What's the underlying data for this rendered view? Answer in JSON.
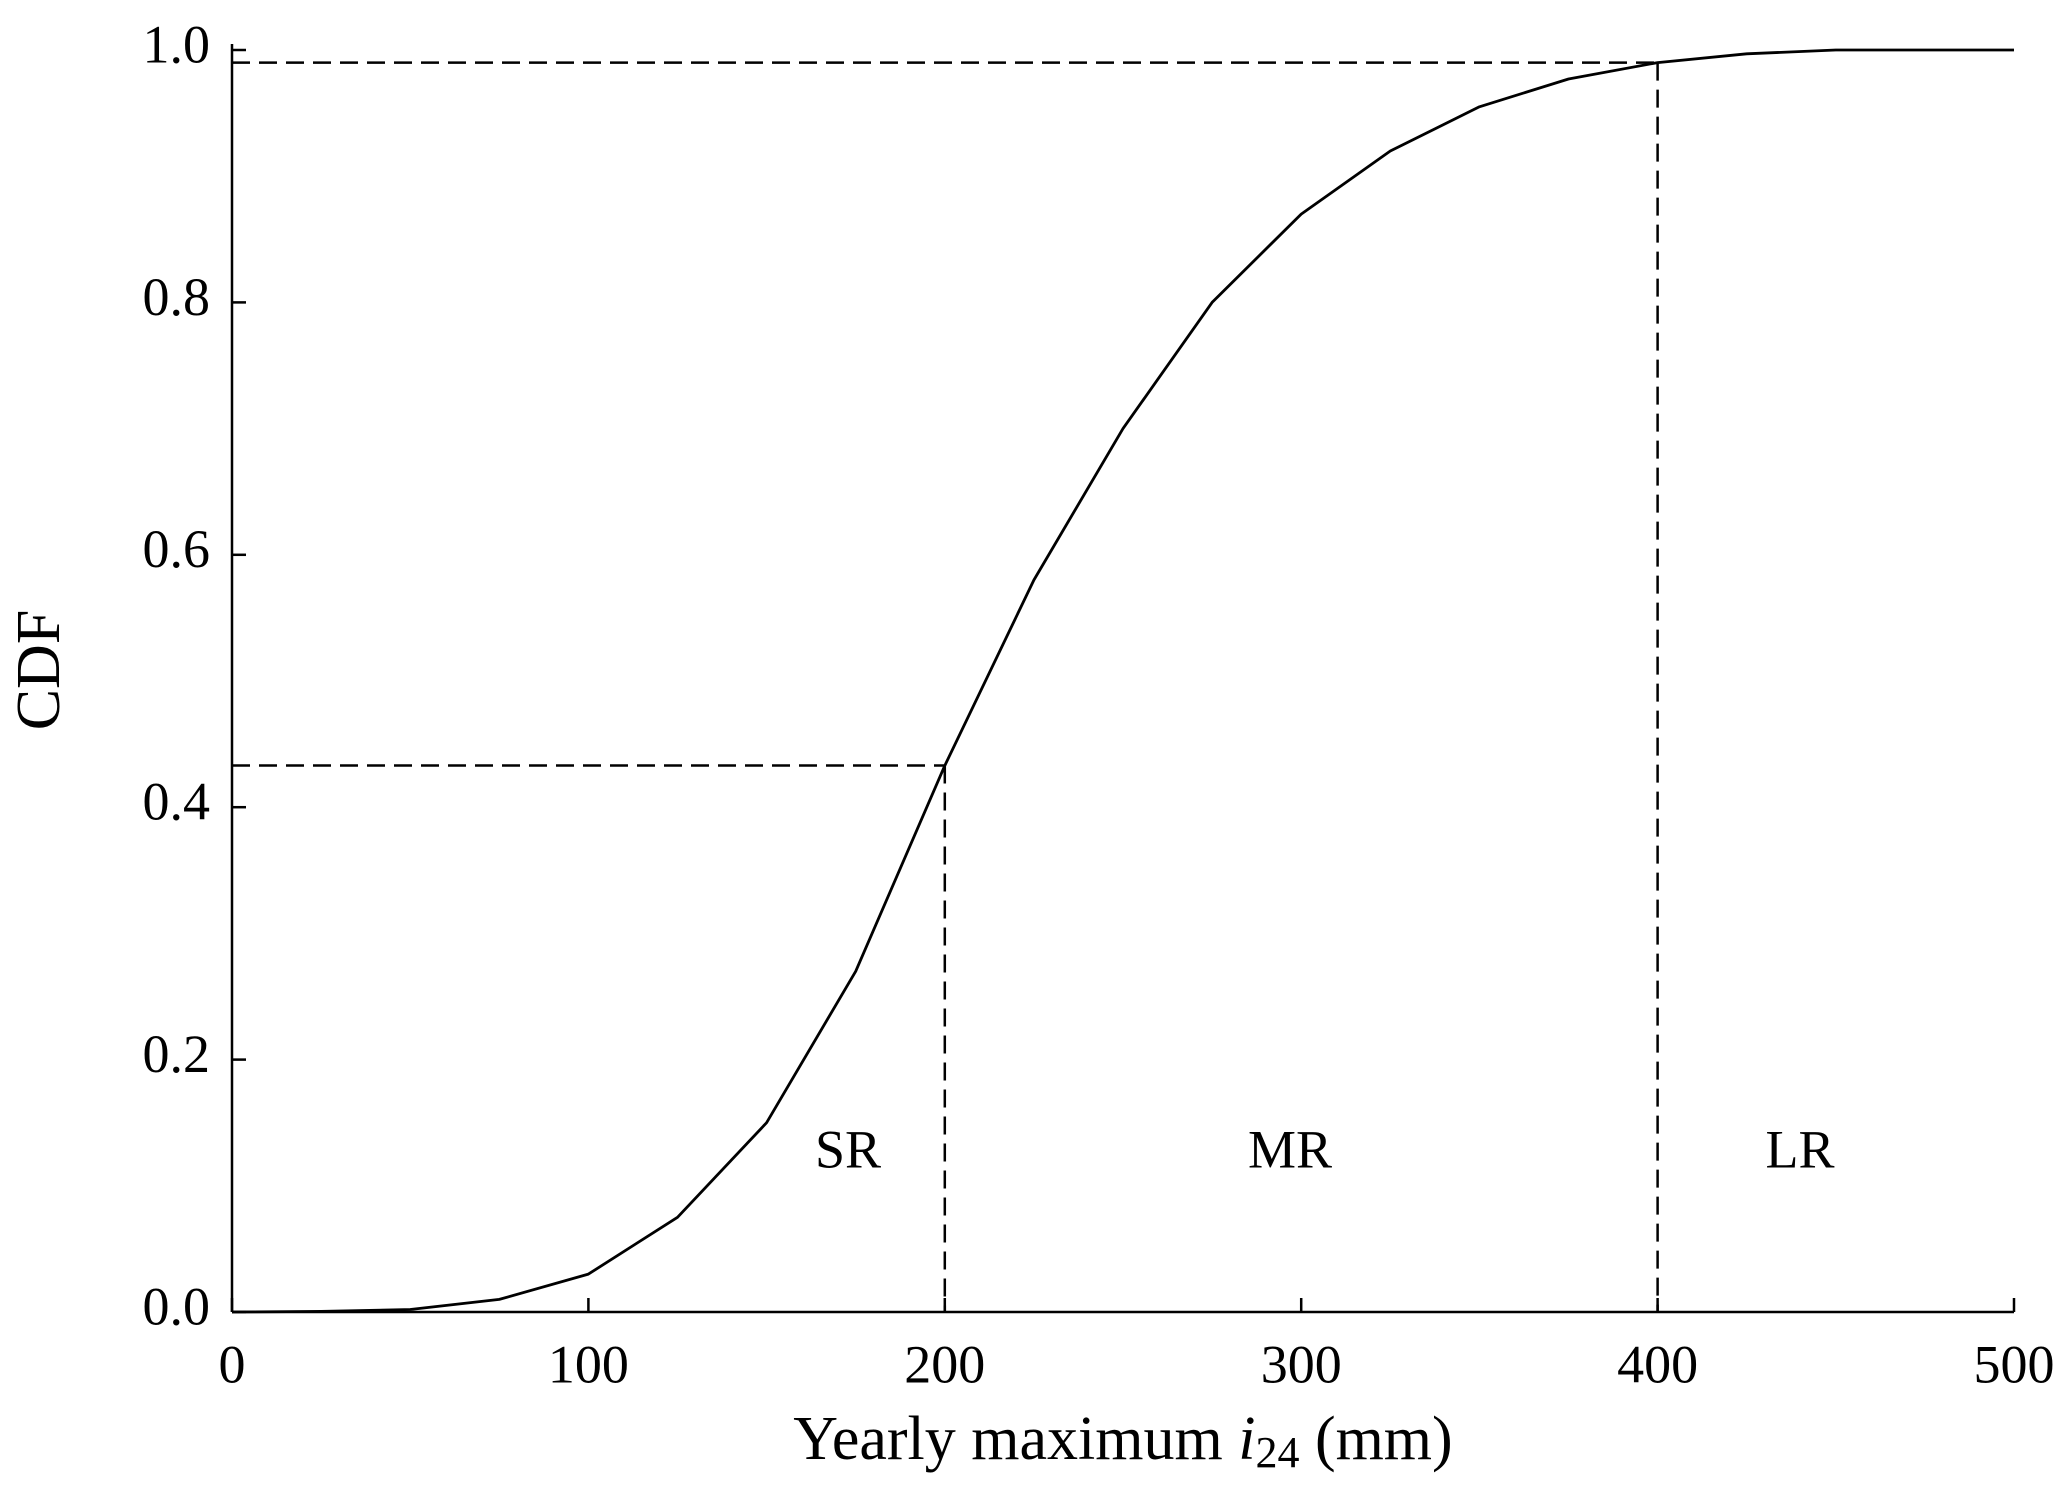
{
  "chart_data": {
    "type": "line",
    "y_label": "CDF",
    "x_label": {
      "text": "Yearly maximum",
      "variable": "i",
      "subscript": "24",
      "unit": "(mm)"
    },
    "x": [
      0,
      25,
      50,
      75,
      100,
      125,
      150,
      175,
      200,
      225,
      250,
      275,
      300,
      325,
      350,
      375,
      400,
      425,
      450,
      475,
      500
    ],
    "series": [
      {
        "name": "CDF",
        "color": "#000000",
        "values": [
          0,
          0.0005,
          0.002,
          0.01,
          0.03,
          0.075,
          0.15,
          0.27,
          0.433,
          0.58,
          0.7,
          0.8,
          0.87,
          0.92,
          0.955,
          0.977,
          0.99,
          0.997,
          1.0,
          1.0,
          1.0
        ]
      }
    ],
    "reference_points": [
      {
        "x": 200,
        "y": 0.433
      },
      {
        "x": 400,
        "y": 0.99
      }
    ],
    "annotations": [
      "SR",
      "MR",
      "LR"
    ],
    "xlim": [
      0,
      500
    ],
    "xticks": [
      0,
      100,
      200,
      300,
      400,
      500
    ],
    "ylim": [
      0,
      1.0
    ],
    "yticks": [
      {
        "value": 0,
        "label": "0.0"
      },
      0.2,
      0.4,
      0.6,
      0.8,
      {
        "value": 1.0,
        "label": "1.0"
      }
    ],
    "grid": false
  }
}
